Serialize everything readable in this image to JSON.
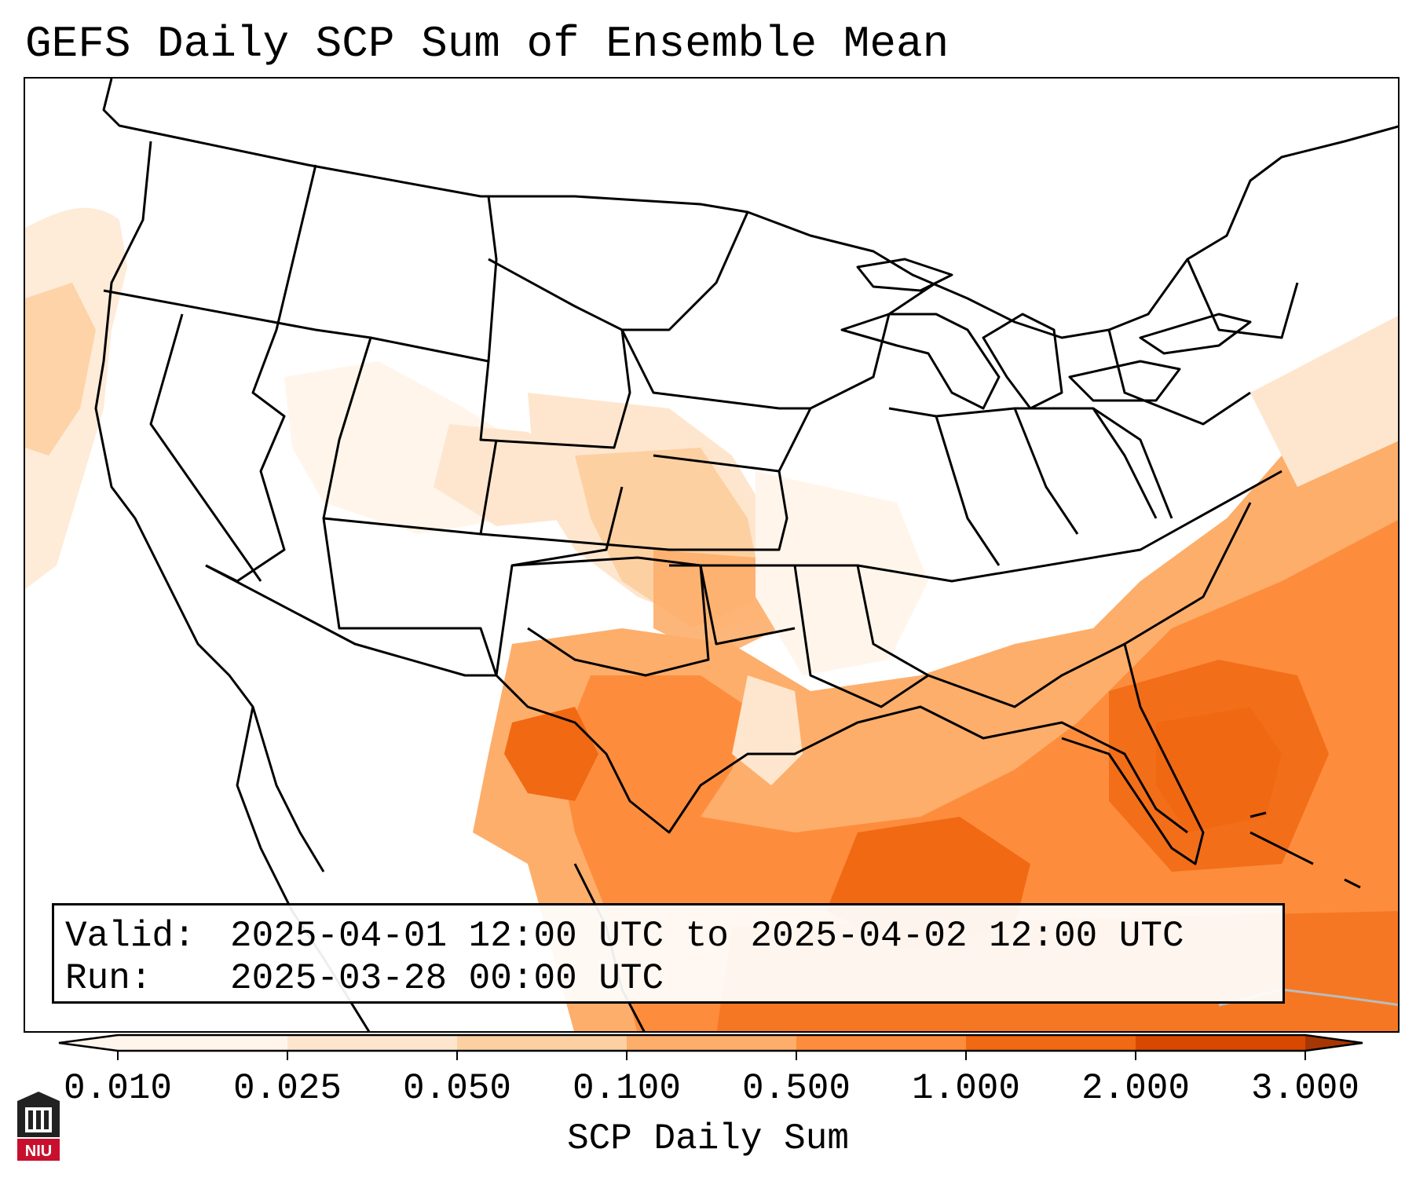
{
  "title": "GEFS Daily SCP Sum of Ensemble Mean",
  "info": {
    "valid_label": "Valid:",
    "valid_value": "2025-04-01 12:00 UTC to 2025-04-02 12:00 UTC",
    "run_label": "Run:",
    "run_value": "2025-03-28 00:00 UTC"
  },
  "colorbar": {
    "label": "SCP Daily Sum",
    "ticks": [
      "0.010",
      "0.025",
      "0.050",
      "0.100",
      "0.500",
      "1.000",
      "2.000",
      "3.000"
    ],
    "colors": [
      "#fff5eb",
      "#fee6ce",
      "#fdd0a2",
      "#fdae6b",
      "#fd8d3c",
      "#f16913",
      "#d94801",
      "#a63603"
    ],
    "extend": "both"
  },
  "logo": {
    "text": "NIU",
    "color": "#c8102e"
  },
  "map": {
    "region": "Continental United States",
    "field": "SCP daily sum, ensemble mean",
    "max_region": "Gulf of Mexico / western Atlantic"
  }
}
